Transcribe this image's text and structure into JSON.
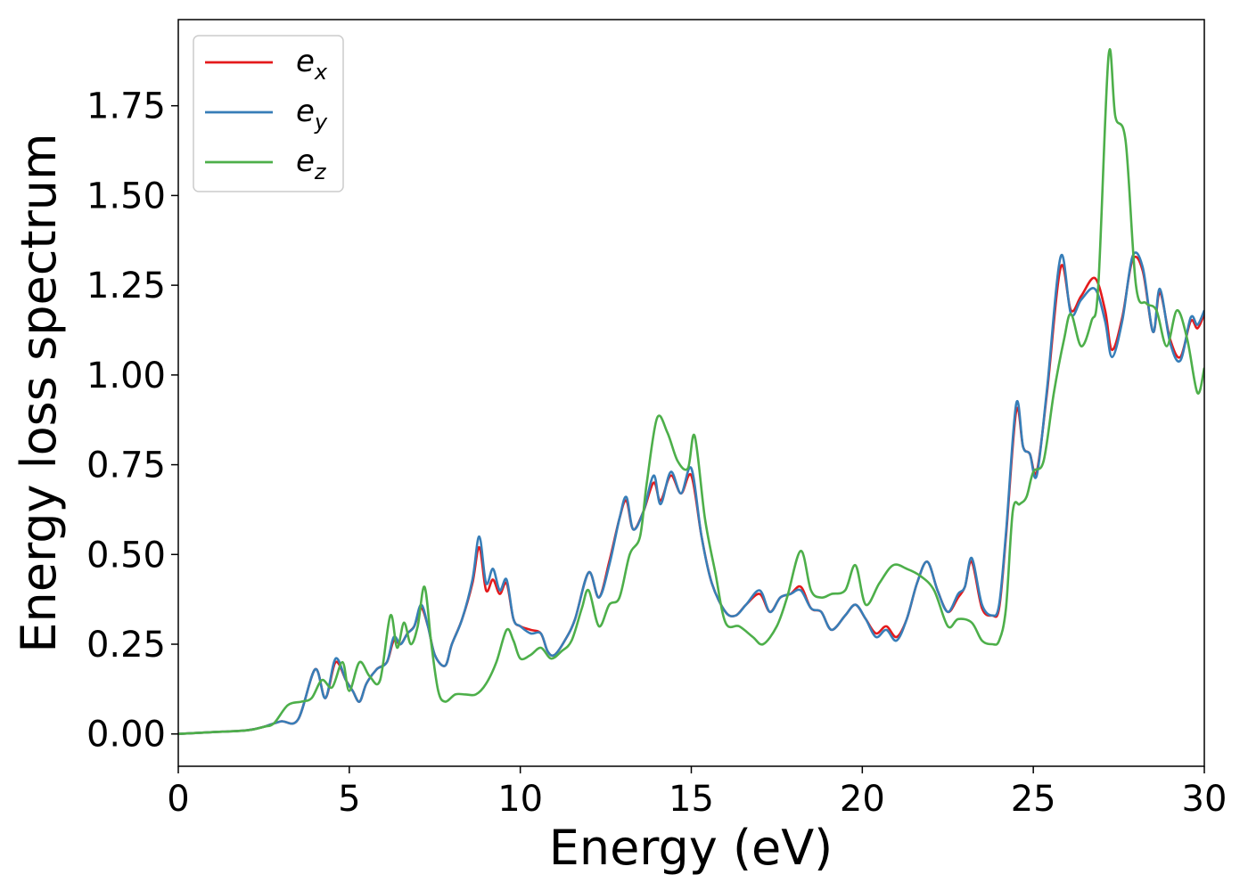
{
  "chart_data": {
    "type": "line",
    "xlabel": "Energy (eV)",
    "ylabel": "Energy loss spectrum",
    "xlim": [
      0,
      30
    ],
    "ylim": [
      -0.09,
      1.99
    ],
    "xticks": [
      0,
      5,
      10,
      15,
      20,
      25,
      30
    ],
    "xtick_labels": [
      "0",
      "5",
      "10",
      "15",
      "20",
      "25",
      "30"
    ],
    "yticks": [
      0,
      0.25,
      0.5,
      0.75,
      1.0,
      1.25,
      1.5,
      1.75
    ],
    "ytick_labels": [
      "0.00",
      "0.25",
      "0.50",
      "0.75",
      "1.00",
      "1.25",
      "1.50",
      "1.75"
    ],
    "grid": false,
    "legend": "top-left",
    "series": [
      {
        "name": "e",
        "subscript": "x",
        "color": "#e41a1c",
        "x": [
          0,
          1,
          2,
          2.5,
          3,
          3.5,
          4,
          4.3,
          4.6,
          4.9,
          5.1,
          5.3,
          5.5,
          5.8,
          6.1,
          6.3,
          6.5,
          6.7,
          6.9,
          7.1,
          7.3,
          7.5,
          7.8,
          8.0,
          8.3,
          8.6,
          8.8,
          9.0,
          9.2,
          9.4,
          9.6,
          9.8,
          10.0,
          10.3,
          10.6,
          10.8,
          11.0,
          11.3,
          11.6,
          12.0,
          12.3,
          12.6,
          12.9,
          13.1,
          13.3,
          13.6,
          13.9,
          14.1,
          14.4,
          14.7,
          15.0,
          15.3,
          15.6,
          16.0,
          16.3,
          16.6,
          17.0,
          17.3,
          17.6,
          17.9,
          18.2,
          18.5,
          18.8,
          19.1,
          19.5,
          19.8,
          20.1,
          20.4,
          20.7,
          21.0,
          21.3,
          21.6,
          21.9,
          22.2,
          22.5,
          22.8,
          23.0,
          23.2,
          23.5,
          23.8,
          24.0,
          24.2,
          24.5,
          24.7,
          24.9,
          25.1,
          25.4,
          25.8,
          26.1,
          26.4,
          26.8,
          27.1,
          27.3,
          27.6,
          27.9,
          28.2,
          28.5,
          28.7,
          29.0,
          29.3,
          29.6,
          29.8,
          30.0
        ],
        "values": [
          0.0,
          0.005,
          0.01,
          0.02,
          0.035,
          0.04,
          0.18,
          0.1,
          0.2,
          0.15,
          0.12,
          0.09,
          0.14,
          0.18,
          0.2,
          0.26,
          0.25,
          0.28,
          0.3,
          0.35,
          0.3,
          0.22,
          0.19,
          0.25,
          0.32,
          0.42,
          0.52,
          0.4,
          0.43,
          0.39,
          0.42,
          0.32,
          0.3,
          0.29,
          0.28,
          0.23,
          0.22,
          0.26,
          0.32,
          0.45,
          0.38,
          0.48,
          0.6,
          0.65,
          0.57,
          0.62,
          0.7,
          0.65,
          0.72,
          0.67,
          0.72,
          0.55,
          0.42,
          0.34,
          0.33,
          0.36,
          0.39,
          0.34,
          0.38,
          0.39,
          0.41,
          0.35,
          0.34,
          0.29,
          0.33,
          0.36,
          0.32,
          0.28,
          0.3,
          0.27,
          0.32,
          0.42,
          0.48,
          0.4,
          0.34,
          0.38,
          0.41,
          0.48,
          0.35,
          0.33,
          0.35,
          0.55,
          0.9,
          0.8,
          0.78,
          0.73,
          0.95,
          1.3,
          1.18,
          1.22,
          1.27,
          1.18,
          1.07,
          1.16,
          1.32,
          1.29,
          1.12,
          1.23,
          1.1,
          1.05,
          1.15,
          1.13,
          1.17
        ]
      },
      {
        "name": "e",
        "subscript": "y",
        "color": "#377eb8",
        "x": [
          0,
          1,
          2,
          2.5,
          3,
          3.5,
          4,
          4.3,
          4.6,
          4.9,
          5.1,
          5.3,
          5.5,
          5.8,
          6.1,
          6.3,
          6.5,
          6.7,
          6.9,
          7.1,
          7.3,
          7.5,
          7.8,
          8.0,
          8.3,
          8.6,
          8.8,
          9.0,
          9.2,
          9.4,
          9.6,
          9.8,
          10.0,
          10.3,
          10.6,
          10.8,
          11.0,
          11.3,
          11.6,
          12.0,
          12.3,
          12.6,
          12.9,
          13.1,
          13.3,
          13.6,
          13.9,
          14.1,
          14.4,
          14.7,
          15.0,
          15.3,
          15.6,
          16.0,
          16.3,
          16.6,
          17.0,
          17.3,
          17.6,
          17.9,
          18.2,
          18.5,
          18.8,
          19.1,
          19.5,
          19.8,
          20.1,
          20.4,
          20.7,
          21.0,
          21.3,
          21.6,
          21.9,
          22.2,
          22.5,
          22.8,
          23.0,
          23.2,
          23.5,
          23.8,
          24.0,
          24.2,
          24.5,
          24.7,
          24.9,
          25.1,
          25.4,
          25.8,
          26.1,
          26.4,
          26.8,
          27.1,
          27.3,
          27.6,
          27.9,
          28.2,
          28.5,
          28.7,
          29.0,
          29.3,
          29.6,
          29.8,
          30.0
        ],
        "values": [
          0.0,
          0.005,
          0.01,
          0.02,
          0.035,
          0.04,
          0.18,
          0.1,
          0.21,
          0.15,
          0.12,
          0.09,
          0.14,
          0.18,
          0.2,
          0.27,
          0.25,
          0.28,
          0.3,
          0.36,
          0.3,
          0.22,
          0.19,
          0.25,
          0.32,
          0.43,
          0.55,
          0.42,
          0.46,
          0.4,
          0.43,
          0.32,
          0.3,
          0.28,
          0.28,
          0.23,
          0.22,
          0.26,
          0.32,
          0.45,
          0.38,
          0.47,
          0.6,
          0.66,
          0.57,
          0.62,
          0.72,
          0.64,
          0.73,
          0.67,
          0.74,
          0.55,
          0.42,
          0.34,
          0.33,
          0.36,
          0.4,
          0.34,
          0.38,
          0.39,
          0.4,
          0.35,
          0.34,
          0.29,
          0.33,
          0.36,
          0.32,
          0.27,
          0.29,
          0.26,
          0.32,
          0.42,
          0.48,
          0.4,
          0.34,
          0.39,
          0.41,
          0.49,
          0.36,
          0.33,
          0.36,
          0.56,
          0.92,
          0.8,
          0.78,
          0.72,
          0.96,
          1.33,
          1.17,
          1.21,
          1.24,
          1.15,
          1.05,
          1.15,
          1.33,
          1.3,
          1.12,
          1.24,
          1.09,
          1.04,
          1.16,
          1.14,
          1.18
        ]
      },
      {
        "name": "e",
        "subscript": "z",
        "color": "#4daf4a",
        "x": [
          0,
          1,
          2,
          2.5,
          2.8,
          3.2,
          3.6,
          3.9,
          4.2,
          4.5,
          4.8,
          5.0,
          5.3,
          5.6,
          5.9,
          6.2,
          6.4,
          6.6,
          6.8,
          7.0,
          7.2,
          7.4,
          7.6,
          7.8,
          8.1,
          8.4,
          8.7,
          9.0,
          9.3,
          9.6,
          9.8,
          10.0,
          10.3,
          10.6,
          10.9,
          11.2,
          11.5,
          11.8,
          12.0,
          12.3,
          12.6,
          12.9,
          13.2,
          13.5,
          13.7,
          14.0,
          14.3,
          14.6,
          14.9,
          15.1,
          15.4,
          15.7,
          16.0,
          16.4,
          16.8,
          17.1,
          17.5,
          17.8,
          18.2,
          18.5,
          18.8,
          19.1,
          19.5,
          19.8,
          20.1,
          20.5,
          20.9,
          21.3,
          21.7,
          22.1,
          22.5,
          22.8,
          23.2,
          23.5,
          23.8,
          24.0,
          24.2,
          24.4,
          24.6,
          24.8,
          25.0,
          25.3,
          25.6,
          25.9,
          26.1,
          26.4,
          26.7,
          26.9,
          27.2,
          27.4,
          27.7,
          28.0,
          28.3,
          28.6,
          28.9,
          29.2,
          29.5,
          29.8,
          30.0
        ],
        "values": [
          0.0,
          0.005,
          0.01,
          0.02,
          0.03,
          0.08,
          0.09,
          0.1,
          0.15,
          0.13,
          0.2,
          0.12,
          0.2,
          0.16,
          0.15,
          0.33,
          0.24,
          0.31,
          0.25,
          0.3,
          0.41,
          0.25,
          0.12,
          0.09,
          0.11,
          0.11,
          0.11,
          0.14,
          0.2,
          0.29,
          0.26,
          0.21,
          0.22,
          0.24,
          0.21,
          0.23,
          0.26,
          0.35,
          0.4,
          0.3,
          0.36,
          0.38,
          0.5,
          0.55,
          0.7,
          0.88,
          0.84,
          0.76,
          0.74,
          0.83,
          0.6,
          0.45,
          0.31,
          0.3,
          0.27,
          0.25,
          0.3,
          0.38,
          0.51,
          0.4,
          0.38,
          0.39,
          0.4,
          0.47,
          0.36,
          0.42,
          0.47,
          0.46,
          0.44,
          0.4,
          0.3,
          0.32,
          0.31,
          0.26,
          0.25,
          0.26,
          0.35,
          0.62,
          0.64,
          0.66,
          0.73,
          0.76,
          0.95,
          1.1,
          1.17,
          1.08,
          1.15,
          1.25,
          1.89,
          1.72,
          1.65,
          1.25,
          1.2,
          1.18,
          1.08,
          1.18,
          1.1,
          0.95,
          1.02
        ]
      }
    ]
  }
}
